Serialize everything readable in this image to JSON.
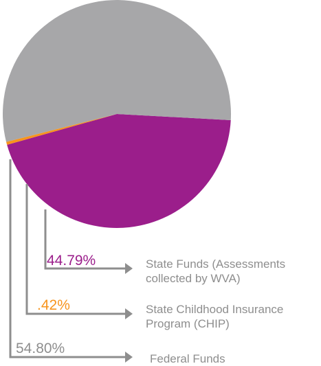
{
  "chart_data": {
    "type": "pie",
    "slices": [
      {
        "label_lines": [
          "State Funds (Assessments",
          "collected by WVA)"
        ],
        "value": 44.79,
        "value_label": "44.79%",
        "color": "#9b1e8b"
      },
      {
        "label_lines": [
          "State Childhood Insurance",
          "Program (CHIP)"
        ],
        "value": 0.42,
        "value_label": ".42%",
        "color": "#f7941d"
      },
      {
        "label_lines": [
          "Federal Funds"
        ],
        "value": 54.8,
        "value_label": "54.80%",
        "color": "#a7a7a9"
      }
    ]
  },
  "colors": {
    "leader_line": "#8e8e8e",
    "federal_value_text": "#8e8e8e"
  }
}
